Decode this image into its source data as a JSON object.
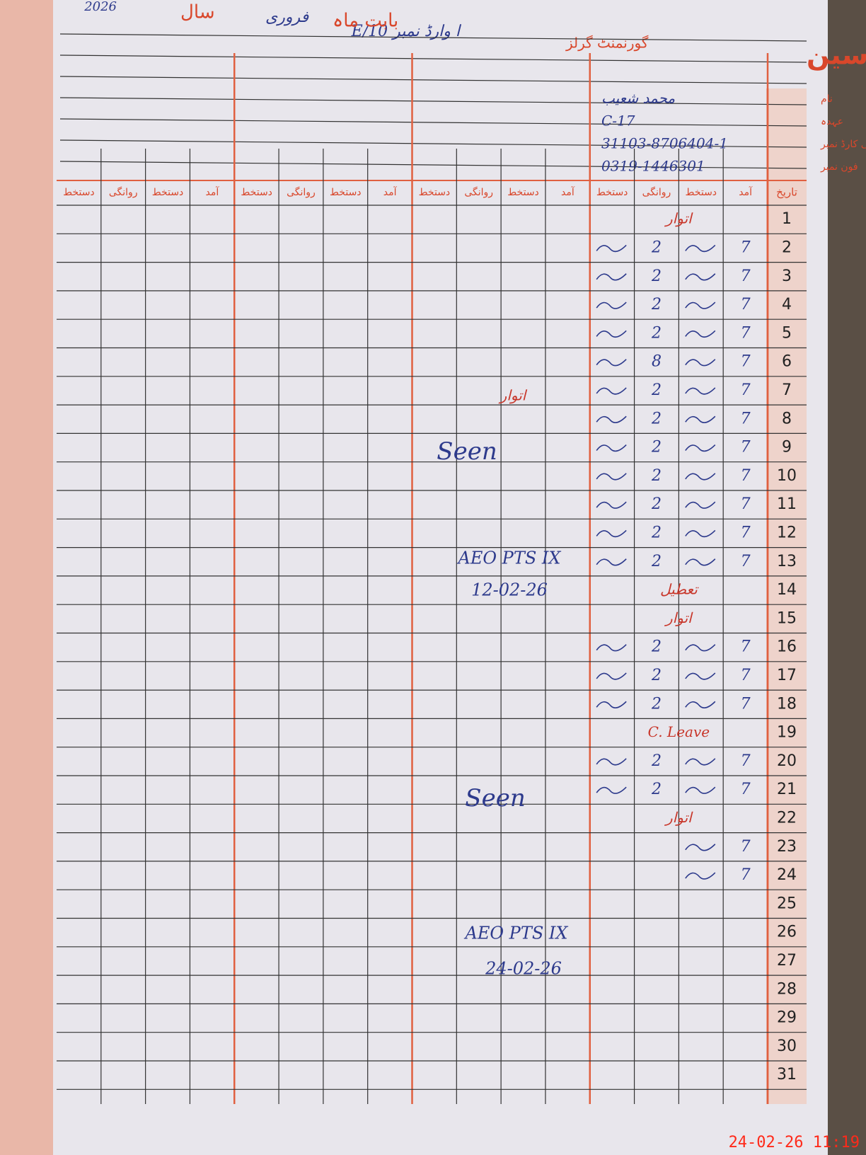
{
  "header": {
    "title": "رجسٹر حاضری مدرسین",
    "school_label": "گورنمنٹ گرلز",
    "school": "E/ا وارڈ نمبر 10",
    "month_label": "بابت ماہ",
    "month": "فروری",
    "year_label": "سال",
    "year": "2026"
  },
  "teacher": {
    "fields": [
      {
        "label": "نام",
        "value": "محمد شعیب"
      },
      {
        "label": "عہدہ",
        "value": "C-17"
      },
      {
        "label": "شناختی کارڈ نمبر",
        "value": "31103-8706404-1"
      },
      {
        "label": "فون نمبر",
        "value": "0319-1446301"
      }
    ]
  },
  "table": {
    "date_header": "تاریخ",
    "column_headers": [
      "آمد",
      "دستخط",
      "روانگی",
      "دستخط",
      "آمد",
      "دستخط",
      "روانگی",
      "دستخط",
      "آمد",
      "دستخط",
      "روانگی",
      "دستخط",
      "آمد",
      "دستخط",
      "روانگی",
      "دستخط"
    ],
    "days": [
      1,
      2,
      3,
      4,
      5,
      6,
      7,
      8,
      9,
      10,
      11,
      12,
      13,
      14,
      15,
      16,
      17,
      18,
      19,
      20,
      21,
      22,
      23,
      24,
      25,
      26,
      27,
      28,
      29,
      30,
      31
    ],
    "entries": [
      {
        "note": "اتوار"
      },
      {
        "in": "7",
        "out": "2"
      },
      {
        "in": "7",
        "out": "2"
      },
      {
        "in": "7",
        "out": "2"
      },
      {
        "in": "7",
        "out": "2"
      },
      {
        "in": "7",
        "out": "8"
      },
      {
        "in": "7",
        "out": "2"
      },
      {
        "in": "7",
        "out": "2"
      },
      {
        "in": "7",
        "out": "2"
      },
      {
        "in": "7",
        "out": "2"
      },
      {
        "in": "7",
        "out": "2"
      },
      {
        "in": "7",
        "out": "2"
      },
      {
        "in": "7",
        "out": "2"
      },
      {
        "note": "تعطیل"
      },
      {
        "note": "اتوار"
      },
      {
        "in": "7",
        "out": "2"
      },
      {
        "in": "7",
        "out": "2"
      },
      {
        "in": "7",
        "out": "2"
      },
      {
        "note": "C. Leave"
      },
      {
        "in": "7",
        "out": "2"
      },
      {
        "in": "7",
        "out": "2"
      },
      {
        "note": "اتوار"
      },
      {
        "in": "7"
      },
      {
        "in": "7"
      },
      null,
      null,
      null,
      null,
      null,
      null,
      null
    ]
  },
  "annotations": [
    {
      "text": "اتوار"
    },
    {
      "text": "Seen"
    },
    {
      "text": "AEO PTS IX"
    },
    {
      "text": "12-02-26"
    },
    {
      "text": "Seen"
    },
    {
      "text": "AEO PTS IX"
    },
    {
      "text": "24-02-26"
    }
  ],
  "timestamp": "24-02-26 11:19"
}
